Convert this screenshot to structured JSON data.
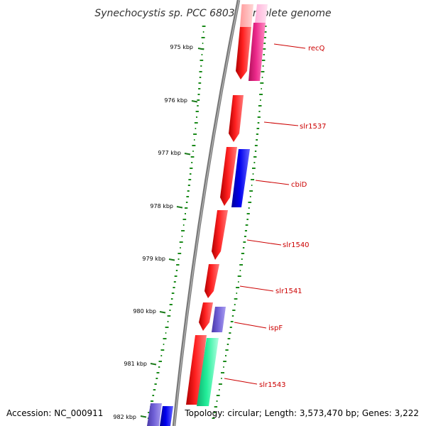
{
  "title": "Synechocystis sp. PCC 6803, complete genome",
  "footer": {
    "accession": "Accession: NC_000911",
    "summary": "Topology: circular; Length: 3,573,470 bp; Genes: 3,222"
  },
  "ruler": [
    {
      "label": "975 kbp"
    },
    {
      "label": "976 kbp"
    },
    {
      "label": "977 kbp"
    },
    {
      "label": "978 kbp"
    },
    {
      "label": "979 kbp"
    },
    {
      "label": "980 kbp"
    },
    {
      "label": "981 kbp"
    },
    {
      "label": "982 kbp"
    }
  ],
  "genes": [
    {
      "name": "recQ",
      "color": "#e8177d"
    },
    {
      "name": "slr1537",
      "color": "#ff0000"
    },
    {
      "name": "cbiD",
      "color": "#0000ee"
    },
    {
      "name": "slr1540",
      "color": "#ff0000"
    },
    {
      "name": "slr1541",
      "color": "#ff0000"
    },
    {
      "name": "ispF",
      "color": "#6f5fd6"
    },
    {
      "name": "slr1543",
      "color": "#22ee99"
    }
  ],
  "colors": {
    "cds": "#ff0000",
    "backbone": "#888888",
    "ruler_ticks": "#1a7a1a",
    "gc_ticks": "#1a8a1a",
    "label_text": "#cc0000"
  }
}
